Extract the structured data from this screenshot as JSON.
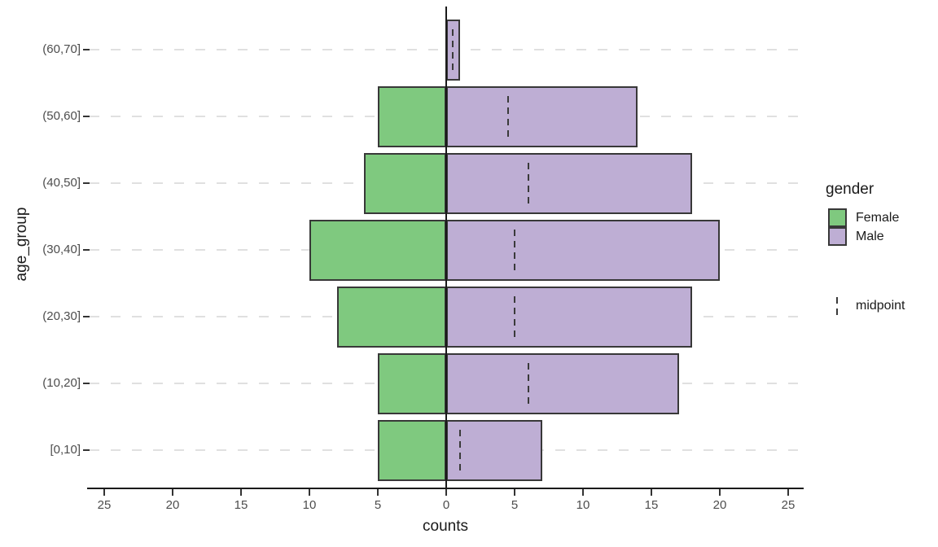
{
  "chart_data": {
    "type": "bar",
    "orientation": "horizontal",
    "subtype": "population-pyramid",
    "title": "",
    "xlabel": "counts",
    "ylabel": "age_group",
    "categories": [
      "(60,70]",
      "(50,60]",
      "(40,50]",
      "(30,40]",
      "(20,30]",
      "(10,20]",
      "[0,10]"
    ],
    "series": [
      {
        "name": "Female",
        "side": "left",
        "values": [
          0,
          5,
          6,
          10,
          8,
          5,
          5
        ]
      },
      {
        "name": "Male",
        "side": "right",
        "values": [
          1,
          14,
          18,
          20,
          18,
          17,
          7
        ]
      }
    ],
    "midpoint_series": {
      "name": "midpoint",
      "values": [
        0.5,
        4.5,
        6,
        5,
        5,
        6,
        1
      ]
    },
    "x_tick_values": [
      -25,
      -20,
      -15,
      -10,
      -5,
      0,
      5,
      10,
      15,
      20,
      25
    ],
    "x_tick_labels": [
      "25",
      "20",
      "15",
      "10",
      "5",
      "0",
      "5",
      "10",
      "15",
      "20",
      "25"
    ],
    "xlim": [
      -26,
      26
    ],
    "grid": "horizontal-dashed",
    "legend_position": "right"
  },
  "legend": {
    "gender_title": "gender",
    "midpoint_label": "midpoint"
  },
  "colors": {
    "female": "#7FC97F",
    "male": "#BEAED4",
    "bar_border": "#383838",
    "grid": "#E0E0E0",
    "axis": "#1A1A1A",
    "tick_text": "#4D4D4D",
    "midpoint_line": "#3A3A3A",
    "background": "#FFFFFF"
  }
}
